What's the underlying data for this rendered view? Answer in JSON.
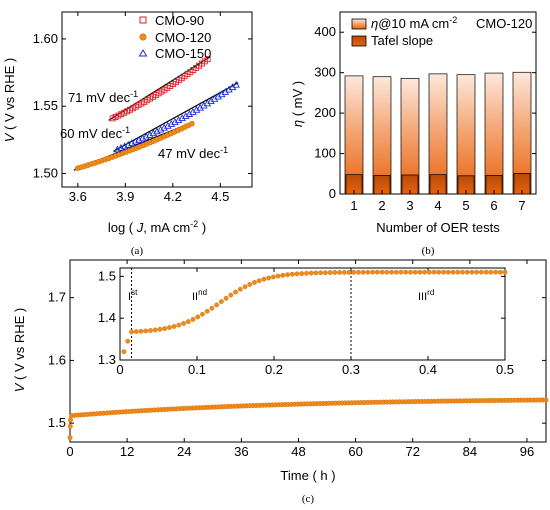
{
  "colors": {
    "cmo90": "#e0202a",
    "cmo120": "#f08a1a",
    "cmo150": "#1a2ee0",
    "fit": "#000000",
    "bar_dark": "#e8620c",
    "bar_light": "#f4a878",
    "bar_top": "#fde8dc"
  },
  "chart_data": [
    {
      "panel": "a",
      "type": "scatter",
      "caption": "(a)",
      "xlabel_pre": "log ( ",
      "xlabel_var": "J",
      "xlabel_post": ", mA cm",
      "xlabel_sup": "-2",
      "xlabel_end": " )",
      "ylabel_var": "V",
      "ylabel_post": " ( V vs RHE )",
      "xlim": [
        3.5,
        4.7
      ],
      "ylim": [
        1.49,
        1.62
      ],
      "xticks": [
        "3.6",
        "3.9",
        "4.2",
        "4.5"
      ],
      "xtick_values": [
        3.6,
        3.9,
        4.2,
        4.5
      ],
      "yticks": [
        "1.50",
        "1.55",
        "1.60"
      ],
      "ytick_values": [
        1.5,
        1.55,
        1.6
      ],
      "legend": [
        "CMO-90",
        "CMO-120",
        "CMO-150"
      ],
      "legend_position": "top-left",
      "series": [
        {
          "name": "CMO-90",
          "marker": "square",
          "x_start": 3.82,
          "x_end": 4.42,
          "y_start": 1.541,
          "y_end": 1.585
        },
        {
          "name": "CMO-120",
          "marker": "circle",
          "x_start": 3.6,
          "x_end": 4.32,
          "y_start": 1.504,
          "y_end": 1.537
        },
        {
          "name": "CMO-150",
          "marker": "triangle",
          "x_start": 3.85,
          "x_end": 4.6,
          "y_start": 1.518,
          "y_end": 1.566
        }
      ],
      "annotations": [
        {
          "value": "71 mV dec",
          "sup": "-1"
        },
        {
          "value": "60 mV dec",
          "sup": "-1"
        },
        {
          "value": "47 mV dec",
          "sup": "-1"
        }
      ]
    },
    {
      "panel": "b",
      "type": "bar",
      "caption": "(b)",
      "xlabel": "Number of OER tests",
      "ylabel_var": "η",
      "ylabel_post": " ( mV )",
      "ylim": [
        0,
        450
      ],
      "yticks": [
        "0",
        "100",
        "200",
        "300",
        "400"
      ],
      "ytick_values": [
        0,
        100,
        200,
        300,
        400
      ],
      "categories": [
        "1",
        "2",
        "3",
        "4",
        "5",
        "6",
        "7"
      ],
      "series": [
        {
          "name": "η@10 mA cm-2",
          "values": [
            292,
            290,
            286,
            297,
            295,
            299,
            301
          ]
        },
        {
          "name": "Tafel slope",
          "values": [
            48,
            46,
            47,
            48,
            45,
            46,
            51
          ]
        }
      ],
      "legend_1_var": "η",
      "legend_1_post": "@10 mA cm",
      "legend_1_sup": "-2",
      "legend_2": "Tafel slope",
      "sample_label": "CMO-120",
      "legend_position": "top-left"
    },
    {
      "panel": "c",
      "type": "line",
      "caption": "(c)",
      "xlabel": "Time ( h )",
      "ylabel_var": "V",
      "ylabel_post": " ( V vs RHE )",
      "xlim": [
        0,
        100
      ],
      "ylim": [
        1.47,
        1.76
      ],
      "xticks": [
        "0",
        "12",
        "24",
        "36",
        "48",
        "60",
        "72",
        "84",
        "96"
      ],
      "xtick_values": [
        0,
        12,
        24,
        36,
        48,
        60,
        72,
        84,
        96
      ],
      "yticks": [
        "1.5",
        "1.6",
        "1.7"
      ],
      "ytick_values": [
        1.5,
        1.6,
        1.7
      ],
      "series_name": "CMO-120",
      "curve": {
        "x_start": 0,
        "x_end": 100,
        "y_initial": 1.477,
        "y_after_jump": 1.512,
        "y_end": 1.537
      },
      "inset": {
        "xlim": [
          0,
          0.5
        ],
        "ylim": [
          1.3,
          1.52
        ],
        "xticks": [
          "0",
          "0.1",
          "0.2",
          "0.3",
          "0.4",
          "0.5"
        ],
        "xtick_values": [
          0,
          0.1,
          0.2,
          0.3,
          0.4,
          0.5
        ],
        "yticks": [
          "1.3",
          "1.4",
          "1.5"
        ],
        "ytick_values": [
          1.3,
          1.4,
          1.5
        ],
        "stage_lines": [
          0.015,
          0.3
        ],
        "stages": [
          {
            "base": "I",
            "sup": "st"
          },
          {
            "base": "II",
            "sup": "nd"
          },
          {
            "base": "III",
            "sup": "rd"
          }
        ],
        "curve": {
          "y_start": 1.32,
          "y_plateau1": 1.365,
          "y_final": 1.51,
          "rise_mid": 0.13
        }
      }
    }
  ]
}
